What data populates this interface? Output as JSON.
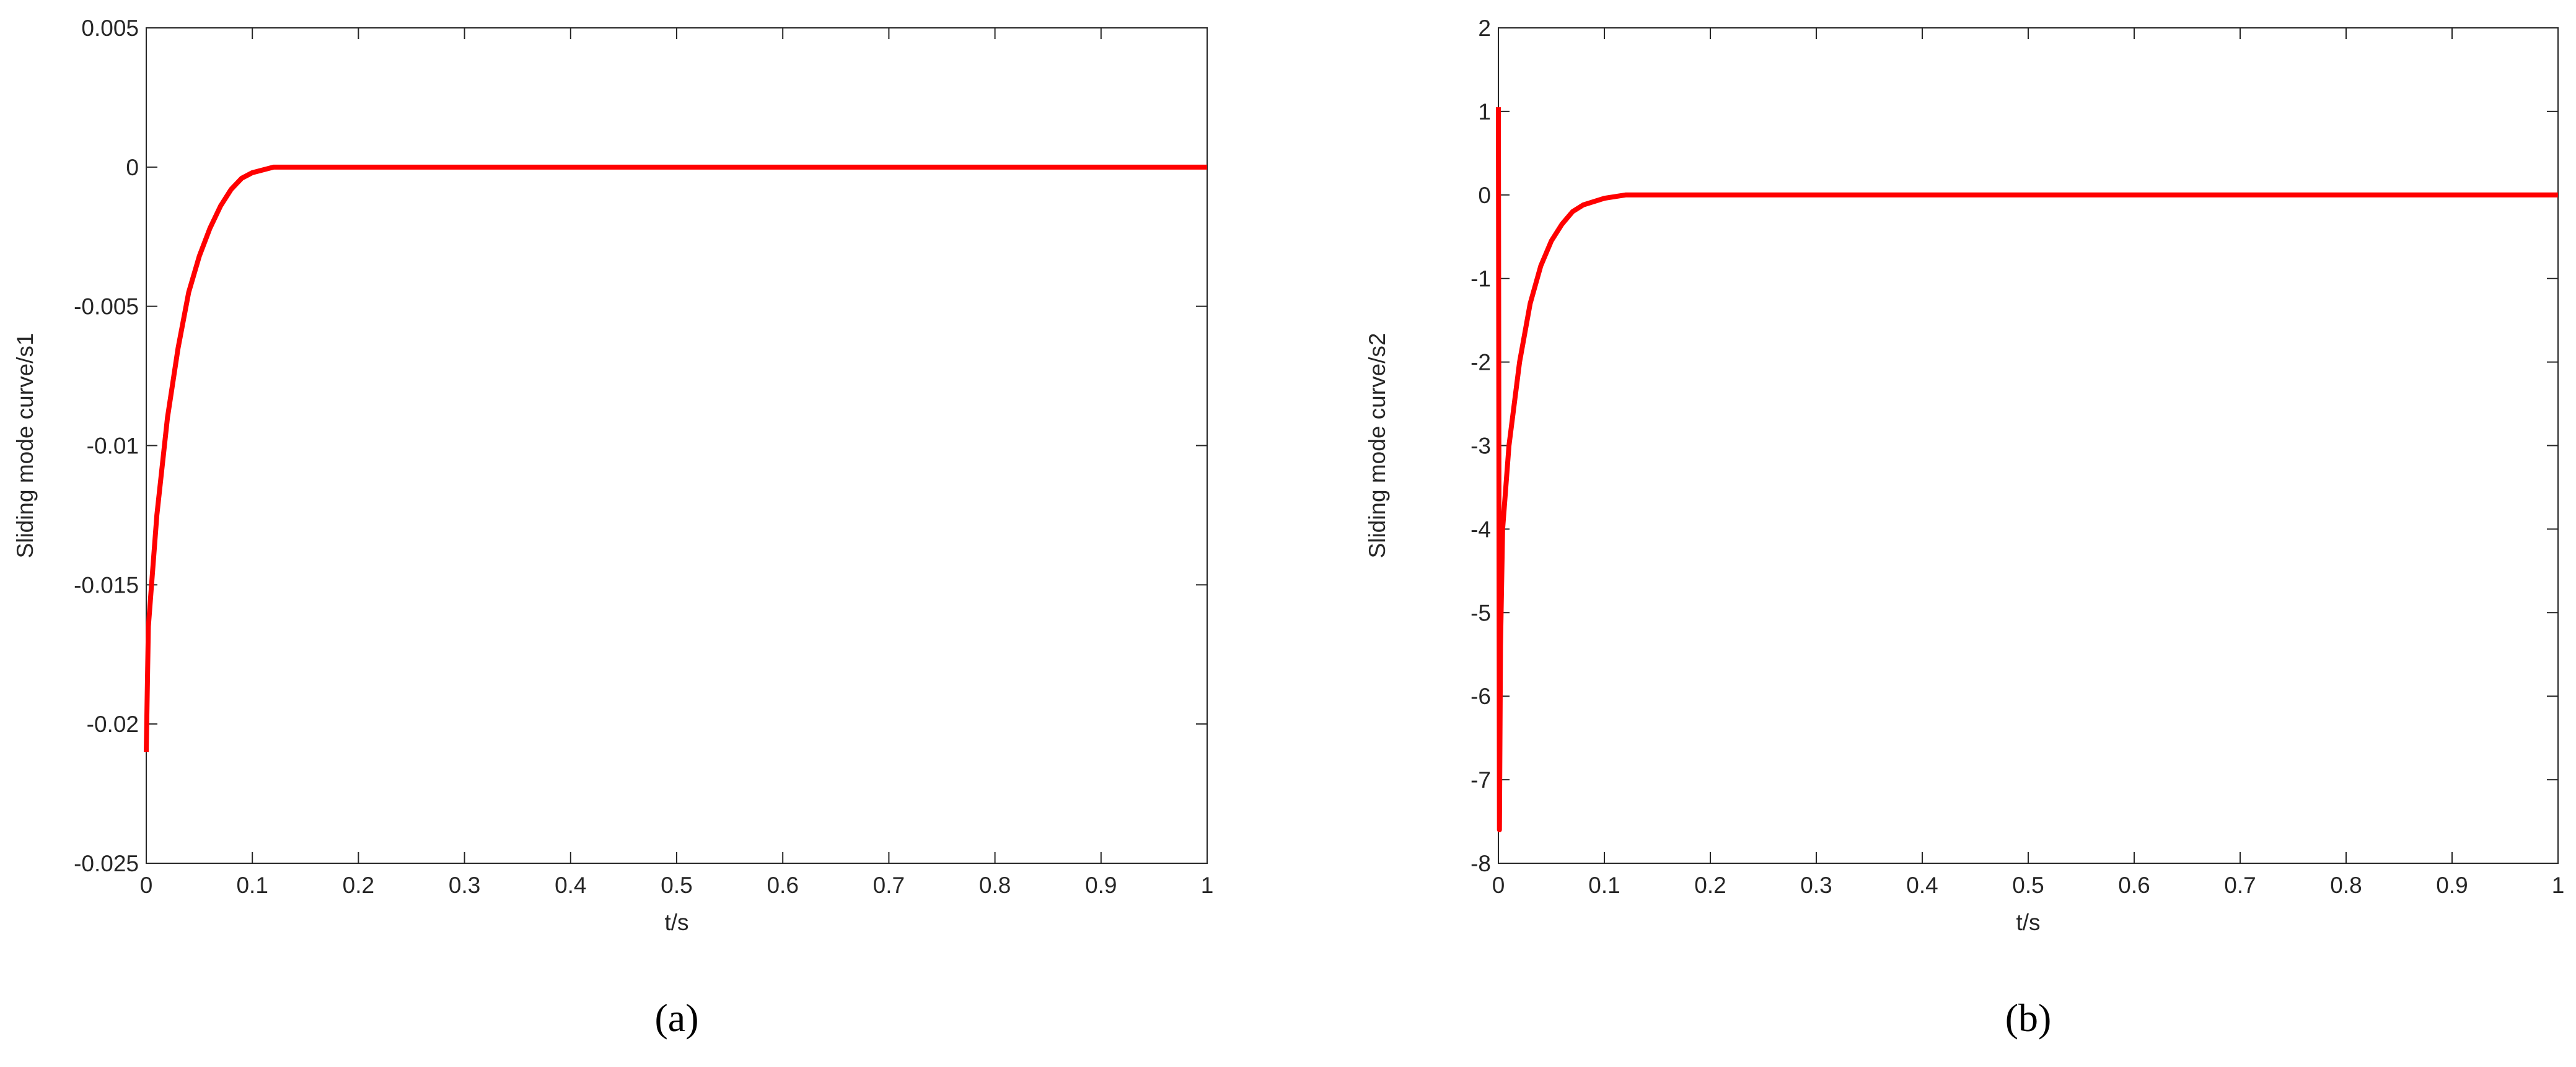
{
  "chart_data": [
    {
      "type": "line",
      "caption": "(a)",
      "xlabel": "t/s",
      "ylabel": "Sliding mode curve/s1",
      "xlim": [
        0,
        1
      ],
      "xticks": [
        0,
        0.1,
        0.2,
        0.3,
        0.4,
        0.5,
        0.6,
        0.7,
        0.8,
        0.9,
        1
      ],
      "ylim": [
        -0.025,
        0.005
      ],
      "yticks": [
        -0.025,
        -0.02,
        -0.015,
        -0.01,
        -0.005,
        0,
        0.005
      ],
      "series": [
        {
          "color": "#ff0000",
          "x": [
            0,
            0.002,
            0.01,
            0.02,
            0.03,
            0.04,
            0.05,
            0.06,
            0.07,
            0.08,
            0.09,
            0.1,
            0.12,
            0.2,
            1
          ],
          "values": [
            -0.021,
            -0.0165,
            -0.0125,
            -0.009,
            -0.0065,
            -0.0045,
            -0.0032,
            -0.0022,
            -0.0014,
            -0.0008,
            -0.0004,
            -0.0002,
            0,
            0,
            0
          ]
        }
      ]
    },
    {
      "type": "line",
      "caption": "(b)",
      "xlabel": "t/s",
      "ylabel": "Sliding mode curve/s2",
      "xlim": [
        0,
        1
      ],
      "xticks": [
        0,
        0.1,
        0.2,
        0.3,
        0.4,
        0.5,
        0.6,
        0.7,
        0.8,
        0.9,
        1
      ],
      "ylim": [
        -8,
        2
      ],
      "yticks": [
        -8,
        -7,
        -6,
        -5,
        -4,
        -3,
        -2,
        -1,
        0,
        1,
        2
      ],
      "series": [
        {
          "color": "#ff0000",
          "x": [
            0,
            0.001,
            0.002,
            0.004,
            0.01,
            0.02,
            0.03,
            0.04,
            0.05,
            0.06,
            0.07,
            0.08,
            0.1,
            0.12,
            1
          ],
          "values": [
            1.05,
            -7.6,
            -5.4,
            -4.0,
            -3.0,
            -2.0,
            -1.3,
            -0.85,
            -0.55,
            -0.35,
            -0.2,
            -0.12,
            -0.04,
            0,
            0
          ]
        }
      ]
    }
  ]
}
